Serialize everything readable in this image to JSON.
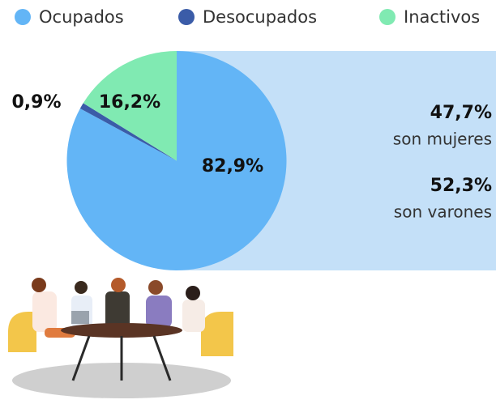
{
  "chart_data": {
    "type": "pie",
    "categories": [
      "Ocupados",
      "Desocupados",
      "Inactivos"
    ],
    "values": [
      82.9,
      0.9,
      16.2
    ],
    "value_labels": [
      "82,9%",
      "0,9%",
      "16,2%"
    ],
    "colors": [
      "#63b5f6",
      "#3b5ca8",
      "#80eab2"
    ],
    "legend": "top",
    "annotations": [
      {
        "label": "47,7%",
        "text": "son mujeres"
      },
      {
        "label": "52,3%",
        "text": "son varones"
      }
    ]
  }
}
